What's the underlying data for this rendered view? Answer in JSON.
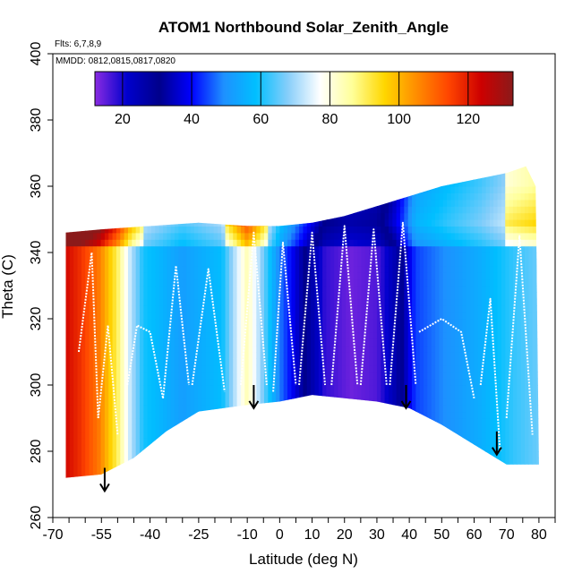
{
  "chart_data": {
    "type": "heatmap",
    "title": "ATOM1 Northbound Solar_Zenith_Angle",
    "flights_label": "Flts: 6,7,8,9",
    "dates_label": "MMDD: 0812,0815,0817,0820",
    "xlabel": "Latitude (deg N)",
    "ylabel": "Theta (C)",
    "xlim": [
      -70,
      85
    ],
    "ylim": [
      260,
      400
    ],
    "x_ticks": [
      -70,
      -55,
      -40,
      -25,
      -10,
      0,
      10,
      20,
      30,
      40,
      50,
      60,
      70,
      80
    ],
    "x_tick_labels": [
      "-70",
      "-55",
      "-40",
      "-25",
      "-10",
      "0",
      "10",
      "20",
      "30",
      "40",
      "50",
      "60",
      "70",
      "80"
    ],
    "y_ticks": [
      260,
      280,
      300,
      320,
      340,
      360,
      380,
      400
    ],
    "y_tick_labels": [
      "260",
      "280",
      "300",
      "320",
      "340",
      "360",
      "380",
      "400"
    ],
    "colorbar": {
      "range": [
        12,
        133
      ],
      "ticks": [
        20,
        40,
        60,
        80,
        100,
        120
      ],
      "tick_labels": [
        "20",
        "40",
        "60",
        "80",
        "100",
        "120"
      ],
      "colors": [
        "#8a2be2",
        "#0000cd",
        "#00008b",
        "#0000ff",
        "#1e90ff",
        "#00bfff",
        "#87cefa",
        "#ffffff",
        "#ffff99",
        "#ffd700",
        "#ff8c00",
        "#ff4500",
        "#cd0000",
        "#8b1a1a"
      ]
    },
    "curtain_top": [
      {
        "lat": -66,
        "theta": 346
      },
      {
        "lat": -55,
        "theta": 347
      },
      {
        "lat": -40,
        "theta": 348
      },
      {
        "lat": -25,
        "theta": 349
      },
      {
        "lat": -10,
        "theta": 348
      },
      {
        "lat": 0,
        "theta": 348
      },
      {
        "lat": 10,
        "theta": 349
      },
      {
        "lat": 20,
        "theta": 351
      },
      {
        "lat": 30,
        "theta": 354
      },
      {
        "lat": 40,
        "theta": 357
      },
      {
        "lat": 50,
        "theta": 360
      },
      {
        "lat": 60,
        "theta": 362
      },
      {
        "lat": 70,
        "theta": 364
      },
      {
        "lat": 76,
        "theta": 366
      },
      {
        "lat": 79,
        "theta": 360
      }
    ],
    "curtain_bottom": [
      {
        "lat": -66,
        "theta": 272
      },
      {
        "lat": -55,
        "theta": 273
      },
      {
        "lat": -45,
        "theta": 278
      },
      {
        "lat": -35,
        "theta": 286
      },
      {
        "lat": -25,
        "theta": 292
      },
      {
        "lat": -10,
        "theta": 294
      },
      {
        "lat": 0,
        "theta": 295
      },
      {
        "lat": 10,
        "theta": 297
      },
      {
        "lat": 20,
        "theta": 296
      },
      {
        "lat": 30,
        "theta": 295
      },
      {
        "lat": 40,
        "theta": 293
      },
      {
        "lat": 50,
        "theta": 288
      },
      {
        "lat": 60,
        "theta": 282
      },
      {
        "lat": 70,
        "theta": 276
      },
      {
        "lat": 80,
        "theta": 276
      }
    ],
    "zenith_by_lat": [
      {
        "lat": -68,
        "sza": 125
      },
      {
        "lat": -62,
        "sza": 118
      },
      {
        "lat": -56,
        "sza": 108
      },
      {
        "lat": -50,
        "sza": 90
      },
      {
        "lat": -46,
        "sza": 72
      },
      {
        "lat": -42,
        "sza": 60
      },
      {
        "lat": -30,
        "sza": 52
      },
      {
        "lat": -18,
        "sza": 58
      },
      {
        "lat": -10,
        "sza": 84
      },
      {
        "lat": -6,
        "sza": 70
      },
      {
        "lat": 0,
        "sza": 48
      },
      {
        "lat": 8,
        "sza": 30
      },
      {
        "lat": 14,
        "sza": 18
      },
      {
        "lat": 22,
        "sza": 14
      },
      {
        "lat": 30,
        "sza": 16
      },
      {
        "lat": 36,
        "sza": 26
      },
      {
        "lat": 42,
        "sza": 44
      },
      {
        "lat": 52,
        "sza": 50
      },
      {
        "lat": 62,
        "sza": 55
      },
      {
        "lat": 72,
        "sza": 62
      },
      {
        "lat": 80,
        "sza": 66
      }
    ],
    "top_gradient": [
      {
        "theta": 340,
        "shift": 12
      },
      {
        "theta": 348,
        "shift": 30
      },
      {
        "theta": 360,
        "shift": 20
      }
    ],
    "profile_lines": [
      [
        {
          "lat": -62,
          "theta": 310
        },
        {
          "lat": -58,
          "theta": 340
        },
        {
          "lat": -56,
          "theta": 290
        }
      ],
      [
        {
          "lat": -56,
          "theta": 290
        },
        {
          "lat": -53,
          "theta": 318
        },
        {
          "lat": -50,
          "theta": 285
        }
      ],
      [
        {
          "lat": -47,
          "theta": 300
        },
        {
          "lat": -44,
          "theta": 318
        },
        {
          "lat": -40,
          "theta": 316
        },
        {
          "lat": -36,
          "theta": 296
        }
      ],
      [
        {
          "lat": -36,
          "theta": 296
        },
        {
          "lat": -32,
          "theta": 336
        },
        {
          "lat": -28,
          "theta": 300
        }
      ],
      [
        {
          "lat": -27,
          "theta": 300
        },
        {
          "lat": -22,
          "theta": 335
        },
        {
          "lat": -17,
          "theta": 298
        }
      ],
      [
        {
          "lat": -12,
          "theta": 300
        },
        {
          "lat": -8,
          "theta": 346
        },
        {
          "lat": -4,
          "theta": 300
        }
      ],
      [
        {
          "lat": -2,
          "theta": 298
        },
        {
          "lat": 1,
          "theta": 343
        },
        {
          "lat": 5,
          "theta": 300
        }
      ],
      [
        {
          "lat": 6,
          "theta": 300
        },
        {
          "lat": 10,
          "theta": 346
        },
        {
          "lat": 14,
          "theta": 300
        }
      ],
      [
        {
          "lat": 16,
          "theta": 300
        },
        {
          "lat": 20,
          "theta": 348
        },
        {
          "lat": 24,
          "theta": 300
        }
      ],
      [
        {
          "lat": 25,
          "theta": 300
        },
        {
          "lat": 29,
          "theta": 347
        },
        {
          "lat": 33,
          "theta": 300
        }
      ],
      [
        {
          "lat": 34,
          "theta": 300
        },
        {
          "lat": 38,
          "theta": 349
        },
        {
          "lat": 42,
          "theta": 300
        }
      ],
      [
        {
          "lat": 43,
          "theta": 316
        },
        {
          "lat": 50,
          "theta": 320
        },
        {
          "lat": 56,
          "theta": 316
        },
        {
          "lat": 60,
          "theta": 296
        }
      ],
      [
        {
          "lat": 62,
          "theta": 300
        },
        {
          "lat": 65,
          "theta": 326
        },
        {
          "lat": 68,
          "theta": 280
        }
      ],
      [
        {
          "lat": 70,
          "theta": 290
        },
        {
          "lat": 74,
          "theta": 345
        },
        {
          "lat": 78,
          "theta": 285
        }
      ]
    ],
    "annotations": [
      {
        "type": "arrow",
        "lat": -54,
        "theta_top": 275,
        "theta_tip": 268
      },
      {
        "type": "arrow",
        "lat": -8,
        "theta_top": 300,
        "theta_tip": 293
      },
      {
        "type": "arrow",
        "lat": 39,
        "theta_top": 300,
        "theta_tip": 293
      },
      {
        "type": "arrow",
        "lat": 67,
        "theta_top": 286,
        "theta_tip": 279
      }
    ]
  }
}
